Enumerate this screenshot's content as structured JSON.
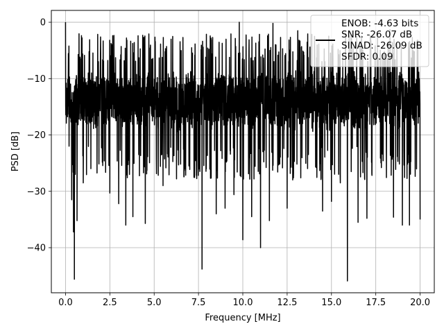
{
  "chart_data": {
    "type": "line",
    "title": "",
    "xlabel": "Frequency [MHz]",
    "ylabel": "PSD [dB]",
    "xlim": [
      -0.8,
      20.8
    ],
    "ylim": [
      -48,
      2.1
    ],
    "xticks": [
      0.0,
      2.5,
      5.0,
      7.5,
      10.0,
      12.5,
      15.0,
      17.5,
      20.0
    ],
    "xtick_labels": [
      "0.0",
      "2.5",
      "5.0",
      "7.5",
      "10.0",
      "12.5",
      "15.0",
      "17.5",
      "20.0"
    ],
    "yticks": [
      0,
      -10,
      -20,
      -30,
      -40
    ],
    "ytick_labels": [
      "0",
      "−10",
      "−20",
      "−30",
      "−40"
    ],
    "grid": true,
    "legend_placement": "top-right",
    "legend_lines": [
      "ENOB: -4.63 bits",
      "SNR: -26.07 dB",
      "SINAD: -26.09 dB",
      "SFDR: 0.09"
    ],
    "series": [
      {
        "color": "#000000",
        "points": [
          [
            0,
            0
          ],
          [
            0.2,
            -22
          ],
          [
            0.35,
            -31.5
          ],
          [
            0.45,
            -37.2
          ],
          [
            0.5,
            -45.6
          ],
          [
            0.55,
            -27
          ],
          [
            0.65,
            -35.2
          ],
          [
            1.0,
            -28.5
          ],
          [
            2.5,
            -30.3
          ],
          [
            3.0,
            -32.2
          ],
          [
            3.4,
            -36.0
          ],
          [
            3.8,
            -34.5
          ],
          [
            4.5,
            -35.7
          ],
          [
            5.5,
            -29
          ],
          [
            7.0,
            -25
          ],
          [
            7.7,
            -43.8
          ],
          [
            8.5,
            -34
          ],
          [
            9.0,
            -33
          ],
          [
            9.5,
            -30.6
          ],
          [
            10.0,
            -38.6
          ],
          [
            10.5,
            -34.5
          ],
          [
            11.0,
            -40.0
          ],
          [
            11.5,
            -35.2
          ],
          [
            12.5,
            -33
          ],
          [
            14.5,
            -33.5
          ],
          [
            15.0,
            -31.8
          ],
          [
            15.5,
            -28.5
          ],
          [
            15.9,
            -45.9
          ],
          [
            16.5,
            -35.5
          ],
          [
            17.0,
            -34.8
          ],
          [
            18.5,
            -34.6
          ],
          [
            19.0,
            -36.0
          ],
          [
            19.4,
            -36.0
          ],
          [
            20.0,
            -35.0
          ]
        ],
        "peaks": [
          [
            0,
            0
          ],
          [
            9.8,
            0
          ],
          [
            11.7,
            -0.2
          ],
          [
            13.1,
            -1.5
          ],
          [
            15.8,
            -2.0
          ],
          [
            17.6,
            -2.0
          ],
          [
            18.3,
            -1.3
          ]
        ],
        "noise_band": {
          "upper": -7.0,
          "lower": -22.0,
          "dense_upper": -10.0,
          "dense_lower": -18.0
        }
      }
    ]
  }
}
